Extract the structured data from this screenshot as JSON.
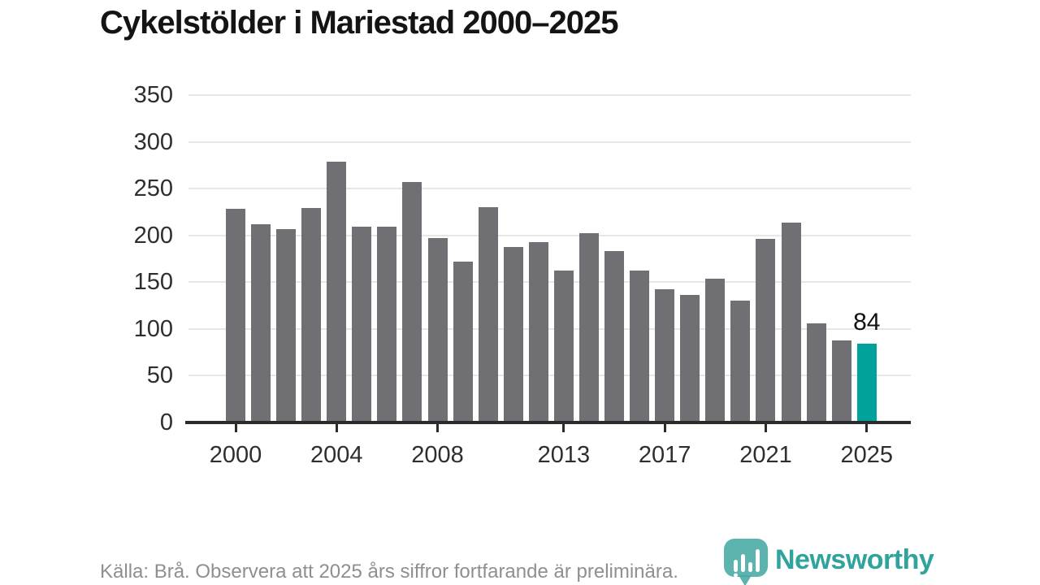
{
  "header": {
    "title": "Cykelstölder i Mariestad 2000–2025"
  },
  "footer": {
    "source_note": "Källa: Brå. Observera att 2025 års siffror fortfarande är preliminära.",
    "brand": {
      "name": "Newsworthy",
      "icon": "newsworthy-speech-bubble-bar-chart-icon",
      "text_color": "#2fa39c",
      "icon_color": "#47a8a2"
    }
  },
  "colors": {
    "bar": "#706f74",
    "highlight": "#00a29b",
    "grid": "#e7e7e7",
    "axis": "#2b2b2b",
    "axis_text": "#2e2e2e",
    "annotation_text": "#111111"
  },
  "chart_data": {
    "type": "bar",
    "title": "Cykelstölder i Mariestad 2000–2025",
    "categories": [
      2000,
      2001,
      2002,
      2003,
      2004,
      2005,
      2006,
      2007,
      2008,
      2009,
      2010,
      2011,
      2012,
      2013,
      2014,
      2015,
      2016,
      2017,
      2018,
      2019,
      2020,
      2021,
      2022,
      2023,
      2024,
      2025
    ],
    "values": [
      228,
      212,
      207,
      229,
      279,
      209,
      209,
      257,
      197,
      172,
      230,
      188,
      193,
      162,
      202,
      183,
      162,
      142,
      136,
      154,
      130,
      196,
      214,
      106,
      88,
      84
    ],
    "highlight_category": 2025,
    "annotation": {
      "category": 2025,
      "label": "84"
    },
    "xticks": [
      2000,
      2004,
      2008,
      2013,
      2017,
      2021,
      2025
    ],
    "yticks": [
      0,
      50,
      100,
      150,
      200,
      250,
      300,
      350
    ],
    "ylim": [
      0,
      350
    ],
    "grid": "horizontal",
    "legend": "none",
    "xlabel": "",
    "ylabel": ""
  }
}
